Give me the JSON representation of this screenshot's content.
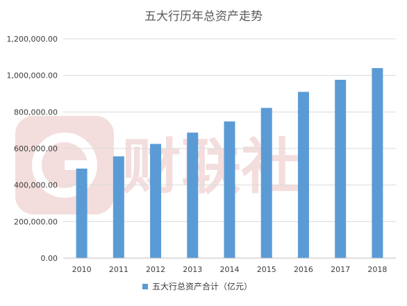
{
  "chart_data": {
    "type": "bar",
    "title": "五大行历年总资产走势",
    "categories": [
      "2010",
      "2011",
      "2012",
      "2013",
      "2014",
      "2015",
      "2016",
      "2017",
      "2018"
    ],
    "series": [
      {
        "name": "五大行总资产合计（亿元）",
        "values": [
          490000,
          557000,
          625000,
          687000,
          748000,
          822000,
          910000,
          976000,
          1040000
        ],
        "color": "#5b9bd5"
      }
    ],
    "y_ticks": [
      "0.00",
      "200,000.00",
      "400,000.00",
      "600,000.00",
      "800,000.00",
      "1,000,000.00",
      "1,200,000.00"
    ],
    "ylim": [
      0,
      1200000
    ],
    "grid": true,
    "legend_position": "bottom",
    "xlabel": "",
    "ylabel": ""
  },
  "watermark": {
    "text": "财联社",
    "color": "#f3dedd"
  }
}
